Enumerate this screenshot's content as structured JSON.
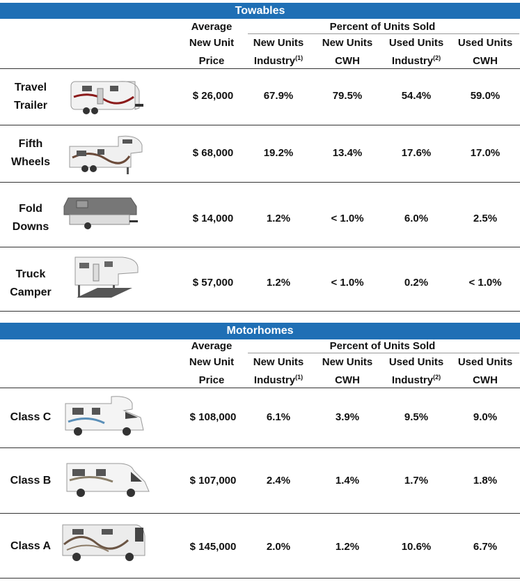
{
  "towables": {
    "title": "Towables",
    "price_header": [
      "Average",
      "New Unit",
      "Price"
    ],
    "percent_header": "Percent of Units Sold",
    "cols": [
      {
        "l1": "New Units",
        "l2": "Industry",
        "sup": "(1)"
      },
      {
        "l1": "New Units",
        "l2": "CWH",
        "sup": ""
      },
      {
        "l1": "Used Units",
        "l2": "Industry",
        "sup": "(2)"
      },
      {
        "l1": "Used Units",
        "l2": "CWH",
        "sup": ""
      }
    ],
    "rows": [
      {
        "name1": "Travel",
        "name2": "Trailer",
        "price": "$  26,000",
        "v": [
          "67.9%",
          "79.5%",
          "54.4%",
          "59.0%"
        ],
        "icon": "travel-trailer-image"
      },
      {
        "name1": "Fifth",
        "name2": "Wheels",
        "price": "$  68,000",
        "v": [
          "19.2%",
          "13.4%",
          "17.6%",
          "17.0%"
        ],
        "icon": "fifth-wheel-image"
      },
      {
        "name1": "Fold",
        "name2": "Downs",
        "price": "$  14,000",
        "v": [
          "1.2%",
          "< 1.0%",
          "6.0%",
          "2.5%"
        ],
        "icon": "fold-down-image"
      },
      {
        "name1": "Truck",
        "name2": "Camper",
        "price": "$  57,000",
        "v": [
          "1.2%",
          "< 1.0%",
          "0.2%",
          "< 1.0%"
        ],
        "icon": "truck-camper-image"
      }
    ]
  },
  "motorhomes": {
    "title": "Motorhomes",
    "price_header": [
      "Average",
      "New Unit",
      "Price"
    ],
    "percent_header": "Percent of Units Sold",
    "cols": [
      {
        "l1": "New Units",
        "l2": "Industry",
        "sup": "(1)"
      },
      {
        "l1": "New Units",
        "l2": "CWH",
        "sup": ""
      },
      {
        "l1": "Used Units",
        "l2": "Industry",
        "sup": "(2)"
      },
      {
        "l1": "Used Units",
        "l2": "CWH",
        "sup": ""
      }
    ],
    "rows": [
      {
        "name1": "Class C",
        "name2": "",
        "price": "$ 108,000",
        "v": [
          "6.1%",
          "3.9%",
          "9.5%",
          "9.0%"
        ],
        "icon": "class-c-image"
      },
      {
        "name1": "Class B",
        "name2": "",
        "price": "$ 107,000",
        "v": [
          "2.4%",
          "1.4%",
          "1.7%",
          "1.8%"
        ],
        "icon": "class-b-image"
      },
      {
        "name1": "Class A",
        "name2": "",
        "price": "$ 145,000",
        "v": [
          "2.0%",
          "1.2%",
          "10.6%",
          "6.7%"
        ],
        "icon": "class-a-image"
      }
    ]
  },
  "colors": {
    "banner": "#1f6fb5"
  }
}
